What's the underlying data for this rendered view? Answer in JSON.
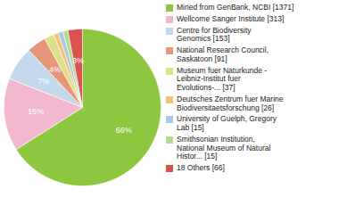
{
  "chart_data": {
    "type": "pie",
    "categories": [
      "Mined from GenBank, NCBI [1371]",
      "Wellcome Sanger Institute [313]",
      "Centre for Biodiversity\nGenomics [153]",
      "National Research Council,\nSaskatoon [91]",
      "Museum fuer Naturkunde -\nLeibniz-Institut fuer\nEvolutions-... [37]",
      "Deutsches Zentrum fuer Marine\nBiodiversitaetsforschung [26]",
      "University of Guelph, Gregory\nLab [15]",
      "Smithsonian Institution,\nNational Museum of Natural\nHistor... [15]",
      "18 Others [66]"
    ],
    "values": [
      66,
      15,
      7,
      4,
      2,
      1,
      1,
      1,
      3
    ],
    "value_labels": [
      "66%",
      "15%",
      "7%",
      "4%",
      null,
      null,
      null,
      null,
      "3%"
    ],
    "colors": [
      "#8dc63f",
      "#f2b8d0",
      "#c5d9ec",
      "#e8967a",
      "#dde08a",
      "#f5c07a",
      "#a8c8e8",
      "#b8d98a",
      "#d9534f"
    ],
    "data_labels": true,
    "legend": "right"
  }
}
